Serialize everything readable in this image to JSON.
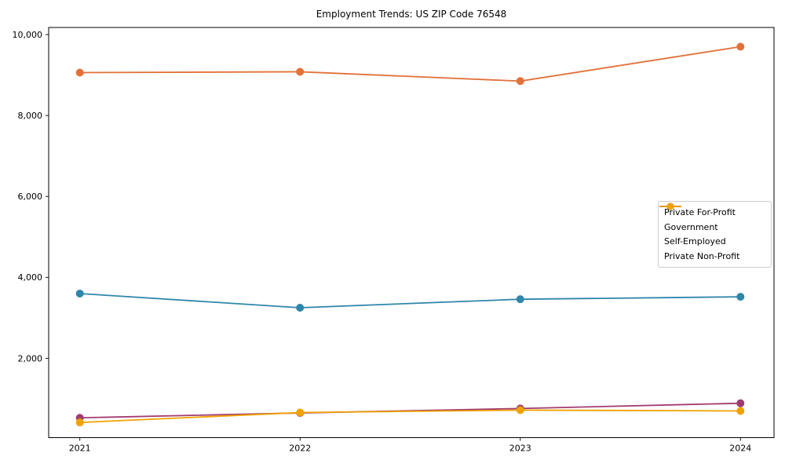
{
  "chart_data": {
    "type": "line",
    "title": "Employment Trends: US ZIP Code 76548",
    "x": [
      2021,
      2022,
      2023,
      2024
    ],
    "xtick_labels": [
      "2021",
      "2022",
      "2023",
      "2024"
    ],
    "series": [
      {
        "name": "Private For-Profit",
        "color": "#E2713A",
        "values": [
          9060,
          9080,
          8850,
          9700
        ]
      },
      {
        "name": "Government",
        "color": "#2E86AB",
        "values": [
          3600,
          3250,
          3460,
          3520
        ]
      },
      {
        "name": "Self-Employed",
        "color": "#A23B72",
        "values": [
          530,
          650,
          760,
          890
        ]
      },
      {
        "name": "Private Non-Profit",
        "color": "#F0A202",
        "values": [
          415,
          660,
          720,
          700
        ]
      }
    ],
    "yticks": [
      2000,
      4000,
      6000,
      8000,
      10000
    ],
    "ytick_labels": [
      "2,000",
      "4,000",
      "6,000",
      "8,000",
      "10,000"
    ],
    "ylim": [
      40,
      10175
    ],
    "grid": false,
    "marker": "o",
    "legend_position": "center right",
    "axis_color": "#000000",
    "background_color": "#ffffff"
  }
}
